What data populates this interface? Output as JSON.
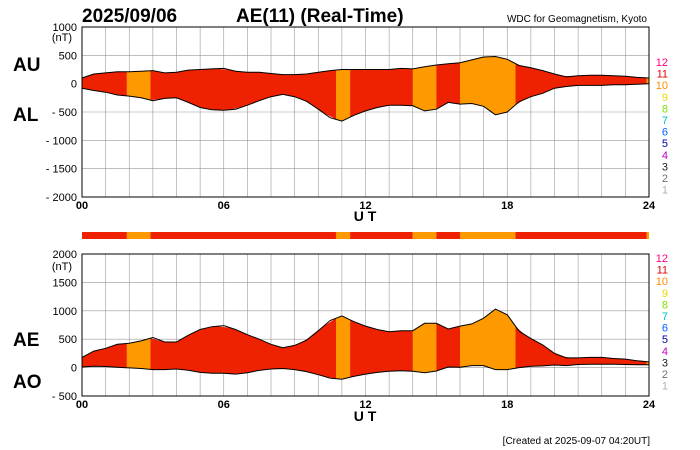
{
  "header": {
    "date": "2025/09/06",
    "title": "AE(11) (Real-Time)",
    "source": "WDC for Geomagnetism, Kyoto"
  },
  "footer": {
    "created": "[Created at 2025-09-07 04:20UT]"
  },
  "stations_legend": {
    "labels": [
      "12",
      "11",
      "10",
      "9",
      "8",
      "7",
      "6",
      "5",
      "4",
      "3",
      "2",
      "1"
    ],
    "colors": [
      "#ff0080",
      "#e00000",
      "#ff8c00",
      "#e8d800",
      "#80e000",
      "#00c0c0",
      "#0060ff",
      "#0000a0",
      "#c000c0",
      "#202020",
      "#707070",
      "#b0b0b0"
    ]
  },
  "station_timeline": [
    {
      "start": 0.0,
      "end": 1.9,
      "count": 11
    },
    {
      "start": 1.9,
      "end": 2.9,
      "count": 10
    },
    {
      "start": 2.9,
      "end": 10.75,
      "count": 11
    },
    {
      "start": 10.75,
      "end": 11.35,
      "count": 10
    },
    {
      "start": 11.35,
      "end": 14.0,
      "count": 11
    },
    {
      "start": 14.0,
      "end": 15.0,
      "count": 10
    },
    {
      "start": 15.0,
      "end": 16.0,
      "count": 11
    },
    {
      "start": 16.0,
      "end": 18.35,
      "count": 10
    },
    {
      "start": 18.35,
      "end": 23.9,
      "count": 11
    },
    {
      "start": 23.9,
      "end": 24.0,
      "count": 10
    }
  ],
  "chart_data": [
    {
      "type": "area",
      "name": "AU/AL",
      "series_labels": [
        "AU",
        "AL"
      ],
      "unit": "(nT)",
      "xlabel": "U T",
      "xlim": [
        0,
        24
      ],
      "ylim": [
        -2000,
        1000
      ],
      "yticks": [
        "1000",
        "500",
        "0",
        "- 500",
        "- 1000",
        "- 1500",
        "- 2000"
      ],
      "ytick_values": [
        1000,
        500,
        0,
        -500,
        -1000,
        -1500,
        -2000
      ],
      "xticks": [
        "00",
        "06",
        "12",
        "18",
        "24"
      ],
      "xtick_values": [
        0,
        6,
        12,
        18,
        24
      ],
      "x": [
        0,
        0.5,
        1,
        1.5,
        2,
        2.5,
        3,
        3.5,
        4,
        4.5,
        5,
        5.5,
        6,
        6.5,
        7,
        7.5,
        8,
        8.5,
        9,
        9.5,
        10,
        10.5,
        11,
        11.5,
        12,
        12.5,
        13,
        13.5,
        14,
        14.5,
        15,
        15.5,
        16,
        16.5,
        17,
        17.5,
        18,
        18.5,
        19,
        19.5,
        20,
        20.5,
        21,
        21.5,
        22,
        22.5,
        23,
        23.5,
        24
      ],
      "upper": [
        100,
        170,
        190,
        210,
        210,
        220,
        230,
        190,
        200,
        240,
        250,
        260,
        270,
        220,
        200,
        200,
        180,
        160,
        160,
        170,
        200,
        230,
        250,
        250,
        250,
        250,
        250,
        270,
        260,
        300,
        330,
        350,
        370,
        420,
        470,
        480,
        430,
        320,
        280,
        230,
        170,
        120,
        140,
        150,
        150,
        140,
        130,
        110,
        100
      ],
      "lower": [
        -80,
        -120,
        -150,
        -200,
        -220,
        -250,
        -300,
        -260,
        -250,
        -330,
        -420,
        -460,
        -470,
        -450,
        -380,
        -300,
        -230,
        -190,
        -230,
        -310,
        -450,
        -600,
        -660,
        -560,
        -480,
        -420,
        -380,
        -380,
        -390,
        -480,
        -450,
        -330,
        -360,
        -350,
        -400,
        -550,
        -500,
        -320,
        -230,
        -170,
        -80,
        -50,
        -30,
        -30,
        -30,
        -20,
        -20,
        -10,
        0
      ]
    },
    {
      "type": "area",
      "name": "AE/AO",
      "series_labels": [
        "AE",
        "AO"
      ],
      "unit": "(nT)",
      "xlabel": "U T",
      "xlim": [
        0,
        24
      ],
      "ylim": [
        -500,
        2000
      ],
      "yticks": [
        "2000",
        "1500",
        "1000",
        "500",
        "0",
        "- 500"
      ],
      "ytick_values": [
        2000,
        1500,
        1000,
        500,
        0,
        -500
      ],
      "xticks": [
        "00",
        "06",
        "12",
        "18",
        "24"
      ],
      "xtick_values": [
        0,
        6,
        12,
        18,
        24
      ],
      "x": [
        0,
        0.5,
        1,
        1.5,
        2,
        2.5,
        3,
        3.5,
        4,
        4.5,
        5,
        5.5,
        6,
        6.5,
        7,
        7.5,
        8,
        8.5,
        9,
        9.5,
        10,
        10.5,
        11,
        11.5,
        12,
        12.5,
        13,
        13.5,
        14,
        14.5,
        15,
        15.5,
        16,
        16.5,
        17,
        17.5,
        18,
        18.5,
        19,
        19.5,
        20,
        20.5,
        21,
        21.5,
        22,
        22.5,
        23,
        23.5,
        24
      ],
      "upper": [
        180,
        290,
        340,
        410,
        430,
        470,
        530,
        450,
        450,
        570,
        670,
        720,
        740,
        670,
        580,
        500,
        410,
        350,
        390,
        480,
        650,
        830,
        910,
        810,
        730,
        670,
        630,
        650,
        650,
        780,
        780,
        680,
        730,
        770,
        870,
        1030,
        930,
        640,
        510,
        400,
        250,
        170,
        170,
        180,
        180,
        160,
        150,
        120,
        100
      ],
      "lower": [
        10,
        25,
        20,
        5,
        -5,
        -15,
        -35,
        -35,
        -25,
        -45,
        -85,
        -100,
        -100,
        -115,
        -90,
        -50,
        -25,
        -15,
        -35,
        -70,
        -125,
        -185,
        -205,
        -155,
        -115,
        -85,
        -65,
        -55,
        -65,
        -90,
        -60,
        10,
        5,
        35,
        35,
        -35,
        -35,
        0,
        25,
        30,
        45,
        35,
        55,
        60,
        60,
        60,
        55,
        50,
        50
      ]
    }
  ]
}
